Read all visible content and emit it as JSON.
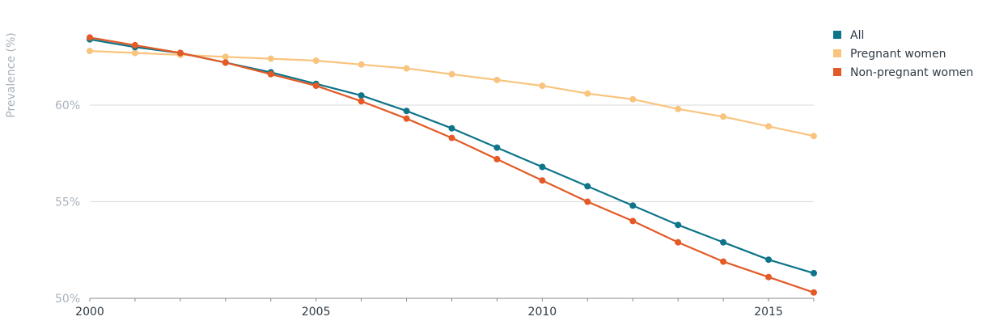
{
  "chart_data": {
    "type": "line",
    "title": "",
    "xlabel": "",
    "ylabel": "Prevalence (%)",
    "x": [
      2000,
      2001,
      2002,
      2003,
      2004,
      2005,
      2006,
      2007,
      2008,
      2009,
      2010,
      2011,
      2012,
      2013,
      2014,
      2015,
      2016
    ],
    "xlim": [
      2000,
      2016
    ],
    "ylim": [
      50,
      63.8
    ],
    "x_ticks": [
      {
        "value": 2000,
        "label": "2000"
      },
      {
        "value": 2005,
        "label": "2005"
      },
      {
        "value": 2010,
        "label": "2010"
      },
      {
        "value": 2015,
        "label": "2015"
      }
    ],
    "y_ticks": [
      {
        "value": 50,
        "label": "50%"
      },
      {
        "value": 55,
        "label": "55%"
      },
      {
        "value": 60,
        "label": "60%"
      }
    ],
    "grid": true,
    "legend_position": "top-right",
    "series": [
      {
        "name": "All",
        "color": "#0e7489",
        "values": [
          63.4,
          63.0,
          62.7,
          62.2,
          61.7,
          61.1,
          60.5,
          59.7,
          58.8,
          57.8,
          56.8,
          55.8,
          54.8,
          53.8,
          52.9,
          52.0,
          51.3
        ]
      },
      {
        "name": "Pregnant women",
        "color": "#f9c47d",
        "values": [
          62.8,
          62.7,
          62.6,
          62.5,
          62.4,
          62.3,
          62.1,
          61.9,
          61.6,
          61.3,
          61.0,
          60.6,
          60.3,
          59.8,
          59.4,
          58.9,
          58.4
        ]
      },
      {
        "name": "Non-pregnant women",
        "color": "#e35a26",
        "values": [
          63.5,
          63.1,
          62.7,
          62.2,
          61.6,
          61.0,
          60.2,
          59.3,
          58.3,
          57.2,
          56.1,
          55.0,
          54.0,
          52.9,
          51.9,
          51.1,
          50.3
        ]
      }
    ]
  }
}
